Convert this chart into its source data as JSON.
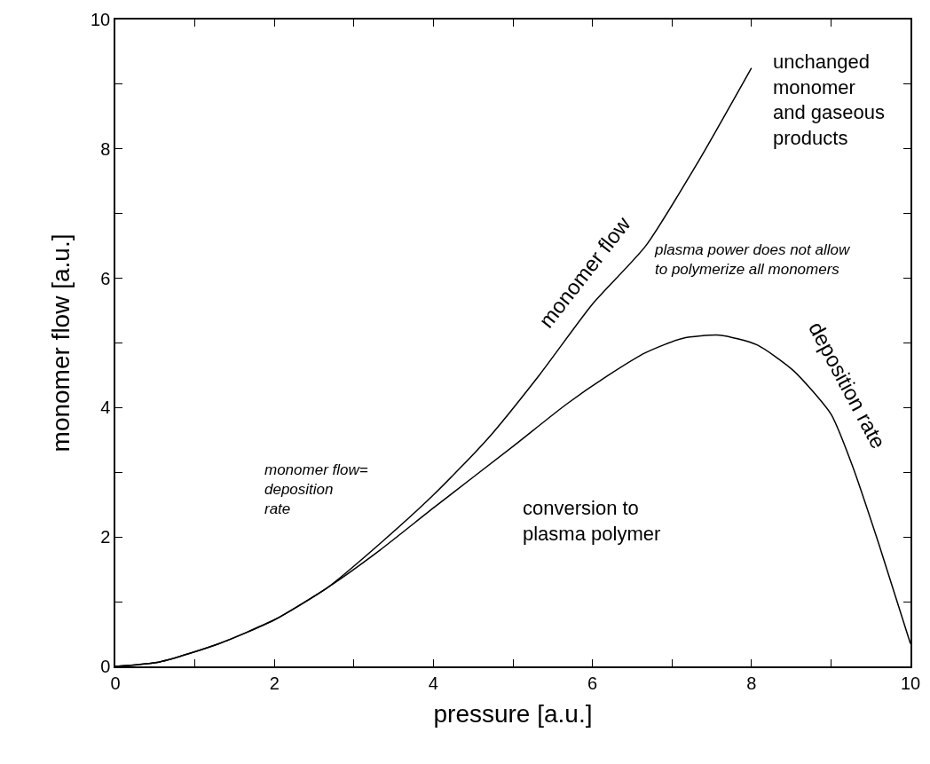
{
  "chart_data": {
    "type": "line",
    "xlabel": "pressure [a.u.]",
    "ylabel": "monomer flow [a.u.]",
    "xlim": [
      0,
      10
    ],
    "ylim": [
      0,
      10
    ],
    "xticks": [
      0,
      {
        "value": 1,
        "label": null
      },
      2,
      {
        "value": 3,
        "label": null
      },
      4,
      {
        "value": 5,
        "label": null
      },
      6,
      {
        "value": 7,
        "label": null
      },
      8,
      {
        "value": 9,
        "label": null
      },
      10
    ],
    "yticks": [
      0,
      {
        "value": 1,
        "label": null
      },
      2,
      {
        "value": 3,
        "label": null
      },
      4,
      {
        "value": 5,
        "label": null
      },
      6,
      {
        "value": 7,
        "label": null
      },
      8,
      {
        "value": 9,
        "label": null
      },
      10
    ],
    "grid": false,
    "legend": false,
    "marker": "none",
    "line_style": "solid",
    "series": [
      {
        "name": "monomer flow",
        "color": "#000000",
        "x": [
          0,
          0.56,
          1.3,
          2,
          2.67,
          3.33,
          4,
          4.67,
          5.33,
          6,
          6.67,
          7.33,
          8
        ],
        "values": [
          0,
          0.07,
          0.35,
          0.72,
          1.22,
          1.9,
          2.65,
          3.5,
          4.5,
          5.6,
          6.5,
          7.8,
          9.25
        ]
      },
      {
        "name": "deposition rate",
        "color": "#000000",
        "x": [
          0,
          0.56,
          1.3,
          2,
          2.67,
          3.33,
          4,
          5,
          5.67,
          6.2,
          6.67,
          7.13,
          7.6,
          8.07,
          8.53,
          9,
          9.27,
          9.6,
          10
        ],
        "values": [
          0,
          0.07,
          0.35,
          0.72,
          1.22,
          1.8,
          2.45,
          3.4,
          4.05,
          4.5,
          4.85,
          5.07,
          5.12,
          4.97,
          4.57,
          3.9,
          3.1,
          1.9,
          0.35
        ]
      }
    ],
    "annotations": [
      "unchanged\nmonomer\nand gaseous\nproducts",
      "plasma power does not allow\nto polymerize all monomers",
      "monomer flow=\ndeposition\nrate",
      "conversion to\nplasma polymer"
    ]
  }
}
